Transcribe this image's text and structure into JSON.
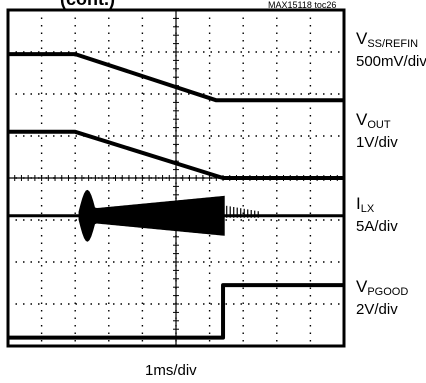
{
  "chart_data": {
    "type": "line",
    "title_fragment": "(cont.)",
    "figure_code": "MAX15118 toc26",
    "timebase": "1ms/div",
    "grid": true,
    "x_divisions": 10,
    "y_divisions": 8,
    "channels": [
      {
        "id": "vss",
        "label_main": "V",
        "label_sub": "SS/REFIN",
        "scale": "500mV/div",
        "points_div": [
          [
            0,
            1.05
          ],
          [
            2.0,
            1.05
          ],
          [
            6.2,
            2.15
          ],
          [
            10,
            2.15
          ]
        ]
      },
      {
        "id": "vout",
        "label_main": "V",
        "label_sub": "OUT",
        "scale": "1V/div",
        "points_div": [
          [
            0,
            2.9
          ],
          [
            2.0,
            2.9
          ],
          [
            6.4,
            4.0
          ],
          [
            10,
            4.0
          ]
        ]
      },
      {
        "id": "ilx",
        "label_main": "I",
        "label_sub": "LX",
        "scale": "5A/div",
        "baseline_div": 4.9,
        "burst_start_div": 2.1,
        "burst_end_div": 6.45
      },
      {
        "id": "vpgood",
        "label_main": "V",
        "label_sub": "PGOOD",
        "scale": "2V/div",
        "points_div": [
          [
            0,
            7.8
          ],
          [
            6.4,
            7.8
          ],
          [
            6.4,
            6.55
          ],
          [
            10,
            6.55
          ]
        ]
      }
    ]
  }
}
